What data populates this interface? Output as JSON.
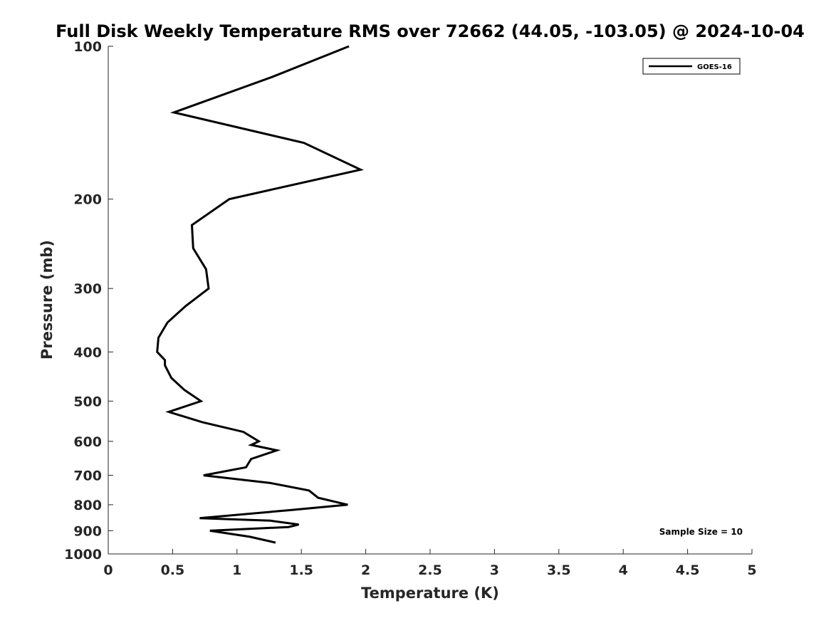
{
  "chart_data": {
    "type": "line",
    "title": "Full Disk Weekly Temperature RMS over 72662 (44.05, -103.05) @ 2024-10-04",
    "xlabel": "Temperature (K)",
    "ylabel": "Pressure (mb)",
    "xlim": [
      0,
      5
    ],
    "ylim": [
      100,
      1000
    ],
    "y_scale": "log",
    "y_direction": "inverted",
    "x_ticks": [
      "0",
      "0.5",
      "1",
      "1.5",
      "2",
      "2.5",
      "3",
      "3.5",
      "4",
      "4.5",
      "5"
    ],
    "y_ticks": [
      "100",
      "200",
      "300",
      "400",
      "500",
      "600",
      "700",
      "800",
      "900",
      "1000"
    ],
    "grid": false,
    "legend_position": "top-right",
    "series": [
      {
        "name": "GOES-16",
        "color": "#000000",
        "points": [
          {
            "x": 1.87,
            "y": 100
          },
          {
            "x": 1.27,
            "y": 115
          },
          {
            "x": 0.51,
            "y": 135
          },
          {
            "x": 1.52,
            "y": 155
          },
          {
            "x": 1.96,
            "y": 175
          },
          {
            "x": 0.94,
            "y": 200
          },
          {
            "x": 0.65,
            "y": 225
          },
          {
            "x": 0.66,
            "y": 250
          },
          {
            "x": 0.76,
            "y": 275
          },
          {
            "x": 0.78,
            "y": 300
          },
          {
            "x": 0.6,
            "y": 325
          },
          {
            "x": 0.46,
            "y": 350
          },
          {
            "x": 0.39,
            "y": 375
          },
          {
            "x": 0.38,
            "y": 400
          },
          {
            "x": 0.44,
            "y": 415
          },
          {
            "x": 0.44,
            "y": 425
          },
          {
            "x": 0.49,
            "y": 450
          },
          {
            "x": 0.59,
            "y": 475
          },
          {
            "x": 0.72,
            "y": 500
          },
          {
            "x": 0.47,
            "y": 525
          },
          {
            "x": 0.73,
            "y": 550
          },
          {
            "x": 1.05,
            "y": 575
          },
          {
            "x": 1.17,
            "y": 600
          },
          {
            "x": 1.11,
            "y": 610
          },
          {
            "x": 1.31,
            "y": 625
          },
          {
            "x": 1.11,
            "y": 650
          },
          {
            "x": 1.07,
            "y": 675
          },
          {
            "x": 0.74,
            "y": 700
          },
          {
            "x": 1.26,
            "y": 725
          },
          {
            "x": 1.56,
            "y": 750
          },
          {
            "x": 1.63,
            "y": 775
          },
          {
            "x": 1.86,
            "y": 800
          },
          {
            "x": 1.41,
            "y": 820
          },
          {
            "x": 0.71,
            "y": 850
          },
          {
            "x": 1.26,
            "y": 860
          },
          {
            "x": 1.48,
            "y": 875
          },
          {
            "x": 1.4,
            "y": 885
          },
          {
            "x": 0.79,
            "y": 900
          },
          {
            "x": 1.1,
            "y": 925
          },
          {
            "x": 1.3,
            "y": 950
          }
        ]
      }
    ],
    "annotations": [
      "Sample Size = 10"
    ]
  }
}
